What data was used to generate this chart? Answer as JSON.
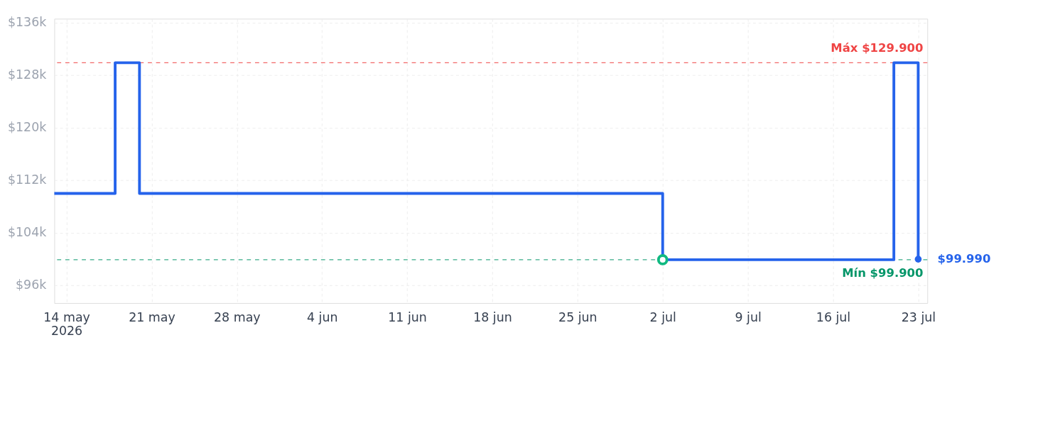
{
  "chart_data": {
    "type": "step",
    "xlim": [
      "2026-05-13",
      "2026-07-23T18:00"
    ],
    "ylim": [
      93300,
      136600
    ],
    "xticks": [
      {
        "value": "2026-05-14",
        "label": "14 may\n2026"
      },
      {
        "value": "2026-05-21",
        "label": "21 may"
      },
      {
        "value": "2026-05-28",
        "label": "28 may"
      },
      {
        "value": "2026-06-04",
        "label": "4 jun"
      },
      {
        "value": "2026-06-11",
        "label": "11 jun"
      },
      {
        "value": "2026-06-18",
        "label": "18 jun"
      },
      {
        "value": "2026-06-25",
        "label": "25 jun"
      },
      {
        "value": "2026-07-02",
        "label": "2 jul"
      },
      {
        "value": "2026-07-09",
        "label": "9 jul"
      },
      {
        "value": "2026-07-16",
        "label": "16 jul"
      },
      {
        "value": "2026-07-23",
        "label": "23 jul"
      }
    ],
    "yticks": [
      {
        "value": 96000,
        "label": "$96k"
      },
      {
        "value": 104000,
        "label": "$104k"
      },
      {
        "value": 112000,
        "label": "$112k"
      },
      {
        "value": 120000,
        "label": "$120k"
      },
      {
        "value": 128000,
        "label": "$128k"
      },
      {
        "value": 136000,
        "label": "$136k"
      }
    ],
    "series": [
      {
        "color": "#2563eb",
        "marker": "none",
        "x": [
          "2026-05-13",
          "2026-05-18",
          "2026-05-20",
          "2026-07-02",
          "2026-07-21",
          "2026-07-23"
        ],
        "values": [
          110000,
          129900,
          110000,
          99900,
          129900,
          99990
        ]
      },
      {
        "type": "scatter",
        "color": "#10b981",
        "marker": "circle",
        "x": [
          "2026-07-02"
        ],
        "values": [
          99900
        ]
      },
      {
        "type": "scatter",
        "color": "#2563eb",
        "marker": "circle",
        "x": [
          "2026-07-23"
        ],
        "values": [
          99990
        ],
        "value_labels": [
          "$99.990"
        ]
      }
    ],
    "ref_lines": [
      {
        "axis": "y",
        "value": 129900,
        "label": "Máx $129.900",
        "color": "#ef4444",
        "line_style": "dashed"
      },
      {
        "axis": "y",
        "value": 99900,
        "label": "Mín $99.900",
        "color": "#059669",
        "line_style": "dashed"
      }
    ],
    "grid": true,
    "legend": false
  }
}
